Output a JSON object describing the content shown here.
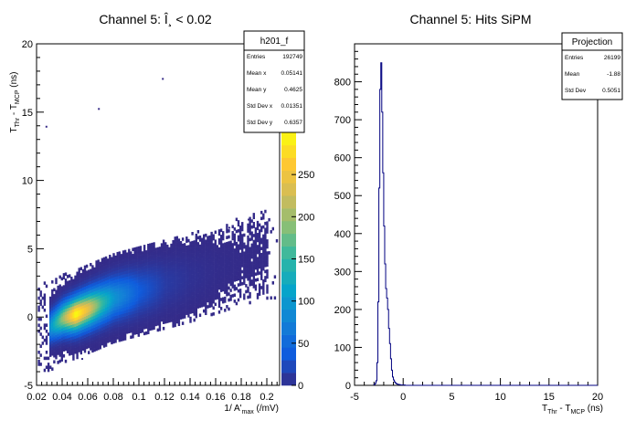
{
  "chart_data": [
    {
      "type": "heatmap",
      "title": "Channel 5: Î¸ < 0.02",
      "xlabel": "1/ A'max (/mV)",
      "ylabel": "TThr - TMCP (ns)",
      "xlim": [
        0.02,
        0.21
      ],
      "ylim": [
        -5,
        20
      ],
      "xticks": [
        "0.02",
        "0.04",
        "0.06",
        "0.08",
        "0.1",
        "0.12",
        "0.14",
        "0.16",
        "0.18",
        "0.2"
      ],
      "yticks": [
        "-5",
        "0",
        "5",
        "10",
        "15",
        "20"
      ],
      "colorbar": {
        "ticks": [
          "0",
          "50",
          "100",
          "150",
          "200",
          "250"
        ],
        "max": 300
      },
      "density_profile": {
        "peak_x": 0.05,
        "peak_y": 0.1,
        "trend_slope_ns_per_invmV": 25,
        "points": [
          {
            "x": 0.03,
            "y": -0.8,
            "z": 90
          },
          {
            "x": 0.04,
            "y": -0.2,
            "z": 190
          },
          {
            "x": 0.05,
            "y": 0.1,
            "z": 290
          },
          {
            "x": 0.06,
            "y": 0.5,
            "z": 230
          },
          {
            "x": 0.07,
            "y": 0.9,
            "z": 150
          },
          {
            "x": 0.08,
            "y": 1.3,
            "z": 90
          },
          {
            "x": 0.1,
            "y": 1.8,
            "z": 35
          },
          {
            "x": 0.12,
            "y": 2.3,
            "z": 12
          },
          {
            "x": 0.14,
            "y": 2.8,
            "z": 5
          },
          {
            "x": 0.16,
            "y": 3.4,
            "z": 2
          },
          {
            "x": 0.18,
            "y": 4.0,
            "z": 1
          },
          {
            "x": 0.2,
            "y": 4.5,
            "z": 1
          }
        ],
        "outliers": [
          {
            "x": 0.118,
            "y": 17.5
          },
          {
            "x": 0.068,
            "y": 15.3
          },
          {
            "x": 0.027,
            "y": 14.0
          },
          {
            "x": 0.055,
            "y": -3.0
          },
          {
            "x": 0.185,
            "y": 7.2
          },
          {
            "x": 0.17,
            "y": 6.6
          }
        ]
      },
      "stats": {
        "name": "h201_f",
        "rows": [
          {
            "label": "Entries",
            "value": "192749"
          },
          {
            "label": "Mean x",
            "value": "0.05141"
          },
          {
            "label": "Mean y",
            "value": "0.4625"
          },
          {
            "label": "Std Dev x",
            "value": "0.01351"
          },
          {
            "label": "Std Dev y",
            "value": "0.6357"
          }
        ]
      }
    },
    {
      "type": "line",
      "title": "Channel 5: Hits SiPM",
      "xlabel": "TThr - TMCP (ns)",
      "ylabel": "",
      "xlim": [
        -5,
        20
      ],
      "ylim": [
        0,
        900
      ],
      "xticks": [
        "-5",
        "0",
        "5",
        "10",
        "15",
        "20"
      ],
      "yticks": [
        "0",
        "100",
        "200",
        "300",
        "400",
        "500",
        "600",
        "700",
        "800"
      ],
      "series": [
        {
          "x": [
            -3.0,
            -2.9,
            -2.8,
            -2.7,
            -2.6,
            -2.5,
            -2.4,
            -2.3,
            -2.2,
            -2.1,
            -2.0,
            -1.9,
            -1.8,
            -1.7,
            -1.6,
            -1.5,
            -1.4,
            -1.3,
            -1.2,
            -1.1,
            -1.0,
            -0.9,
            -0.8,
            -0.7,
            -0.6,
            -0.5,
            -0.4,
            -0.3,
            -0.2,
            -0.1,
            0.0,
            0.2,
            0.5,
            1.0,
            2.0
          ],
          "y": [
            2,
            5,
            12,
            60,
            220,
            520,
            780,
            850,
            720,
            560,
            420,
            320,
            255,
            230,
            200,
            150,
            110,
            70,
            40,
            22,
            14,
            9,
            6,
            4,
            3,
            2,
            2,
            1,
            1,
            1,
            1,
            0,
            0,
            0,
            0
          ]
        }
      ],
      "stats": {
        "name": "Projection",
        "rows": [
          {
            "label": "Entries",
            "value": "26199"
          },
          {
            "label": "Mean",
            "value": "-1.88"
          },
          {
            "label": "Std Dev",
            "value": "0.5051"
          }
        ]
      }
    }
  ]
}
